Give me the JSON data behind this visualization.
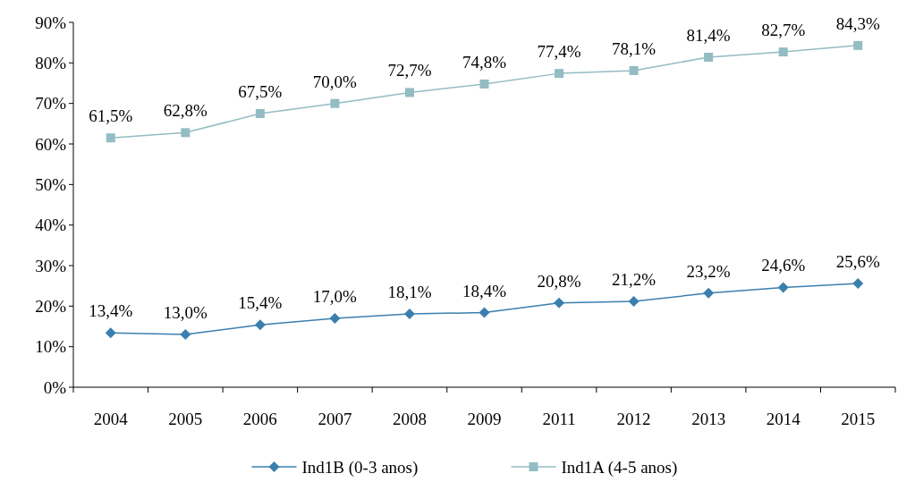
{
  "chart_data": {
    "type": "line",
    "categories": [
      "2004",
      "2005",
      "2006",
      "2007",
      "2008",
      "2009",
      "2011",
      "2012",
      "2013",
      "2014",
      "2015"
    ],
    "ylim": [
      0,
      90
    ],
    "yticks": [
      {
        "value": 0,
        "label": "0%"
      },
      {
        "value": 10,
        "label": "10%"
      },
      {
        "value": 20,
        "label": "20%"
      },
      {
        "value": 30,
        "label": "30%"
      },
      {
        "value": 40,
        "label": "40%"
      },
      {
        "value": 50,
        "label": "50%"
      },
      {
        "value": 60,
        "label": "60%"
      },
      {
        "value": 70,
        "label": "70%"
      },
      {
        "value": 80,
        "label": "80%"
      },
      {
        "value": 90,
        "label": "90%"
      }
    ],
    "grid": false,
    "legend": "bottom",
    "line_style": "solid",
    "series": [
      {
        "name": "Ind1B (0-3 anos)",
        "color": "#3b7fae",
        "marker": "diamond",
        "values": [
          13.4,
          13.0,
          15.4,
          17.0,
          18.1,
          18.4,
          20.8,
          21.2,
          23.2,
          24.6,
          25.6
        ],
        "value_labels": [
          "13,4%",
          "13,0%",
          "15,4%",
          "17,0%",
          "18,1%",
          "18,4%",
          "20,8%",
          "21,2%",
          "23,2%",
          "24,6%",
          "25,6%"
        ]
      },
      {
        "name": "Ind1A (4-5 anos)",
        "color": "#93bcc3",
        "marker": "square",
        "values": [
          61.5,
          62.8,
          67.5,
          70.0,
          72.7,
          74.8,
          77.4,
          78.1,
          81.4,
          82.7,
          84.3
        ],
        "value_labels": [
          "61,5%",
          "62,8%",
          "67,5%",
          "70,0%",
          "72,7%",
          "74,8%",
          "77,4%",
          "78,1%",
          "81,4%",
          "82,7%",
          "84,3%"
        ]
      }
    ]
  }
}
